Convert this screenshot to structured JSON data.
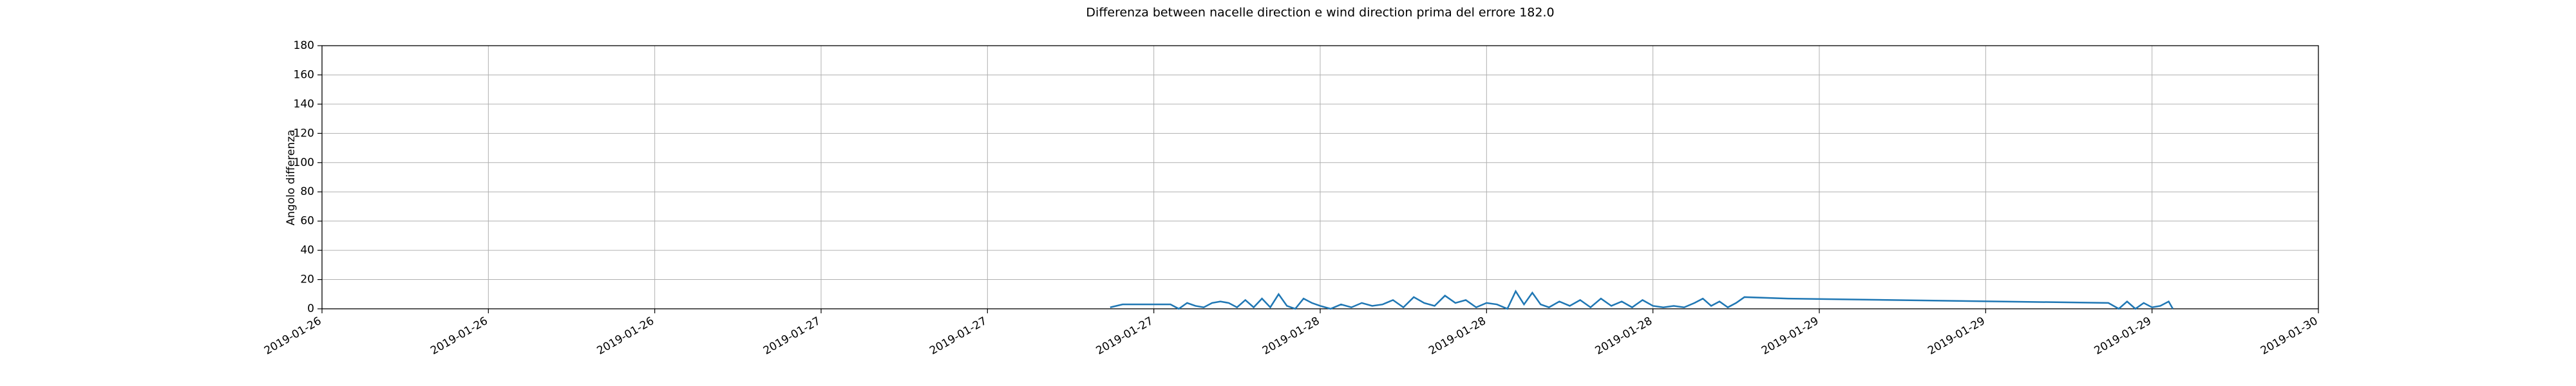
{
  "chart_data": {
    "type": "line",
    "title": "Differenza between nacelle direction e wind direction prima del errore 182.0",
    "y_label": "Angolo differenza",
    "x": [
      "2019-01-27T13:54",
      "2019-01-27T14:30",
      "2019-01-27T16:48",
      "2019-01-27T17:12",
      "2019-01-27T17:36",
      "2019-01-27T18:00",
      "2019-01-27T18:24",
      "2019-01-27T18:48",
      "2019-01-27T19:12",
      "2019-01-27T19:36",
      "2019-01-27T20:00",
      "2019-01-27T20:24",
      "2019-01-27T20:48",
      "2019-01-27T21:12",
      "2019-01-27T21:36",
      "2019-01-27T22:00",
      "2019-01-27T22:24",
      "2019-01-27T22:48",
      "2019-01-27T23:12",
      "2019-01-27T23:36",
      "2019-01-28T00:00",
      "2019-01-28T00:30",
      "2019-01-28T01:00",
      "2019-01-28T01:30",
      "2019-01-28T02:00",
      "2019-01-28T02:30",
      "2019-01-28T03:00",
      "2019-01-28T03:30",
      "2019-01-28T04:00",
      "2019-01-28T04:30",
      "2019-01-28T05:00",
      "2019-01-28T05:30",
      "2019-01-28T06:00",
      "2019-01-28T06:30",
      "2019-01-28T07:00",
      "2019-01-28T07:30",
      "2019-01-28T08:00",
      "2019-01-28T08:30",
      "2019-01-28T09:00",
      "2019-01-28T09:24",
      "2019-01-28T09:48",
      "2019-01-28T10:12",
      "2019-01-28T10:36",
      "2019-01-28T11:00",
      "2019-01-28T11:30",
      "2019-01-28T12:00",
      "2019-01-28T12:30",
      "2019-01-28T13:00",
      "2019-01-28T13:30",
      "2019-01-28T14:00",
      "2019-01-28T14:30",
      "2019-01-28T15:00",
      "2019-01-28T15:30",
      "2019-01-28T16:00",
      "2019-01-28T16:30",
      "2019-01-28T17:00",
      "2019-01-28T17:30",
      "2019-01-28T18:00",
      "2019-01-28T18:24",
      "2019-01-28T18:48",
      "2019-01-28T19:12",
      "2019-01-28T19:36",
      "2019-01-28T20:00",
      "2019-01-28T20:24",
      "2019-01-28T22:30",
      "2019-01-29T13:54",
      "2019-01-29T14:24",
      "2019-01-29T14:48",
      "2019-01-29T15:12",
      "2019-01-29T15:36",
      "2019-01-29T16:00",
      "2019-01-29T16:24",
      "2019-01-29T16:48",
      "2019-01-29T17:00"
    ],
    "values": [
      1,
      3,
      3,
      0,
      4,
      2,
      1,
      4,
      5,
      4,
      1,
      6,
      1,
      7,
      1,
      10,
      2,
      0,
      7,
      4,
      2,
      0,
      3,
      1,
      4,
      2,
      3,
      6,
      1,
      8,
      4,
      2,
      9,
      4,
      6,
      1,
      4,
      3,
      0,
      12,
      3,
      11,
      3,
      1,
      5,
      2,
      6,
      1,
      7,
      2,
      5,
      1,
      6,
      2,
      1,
      2,
      1,
      4,
      7,
      2,
      5,
      1,
      4,
      8,
      7,
      4,
      0,
      5,
      0,
      4,
      1,
      2,
      5,
      0
    ],
    "color": "#1f77b4",
    "xlim": [
      "2019-01-26T00:00",
      "2019-01-30T00:00"
    ],
    "xticks": [
      {
        "value": "2019-01-26T00:00",
        "label": "2019-01-26"
      },
      {
        "value": "2019-01-26T08:00",
        "label": "2019-01-26"
      },
      {
        "value": "2019-01-26T16:00",
        "label": "2019-01-26"
      },
      {
        "value": "2019-01-27T00:00",
        "label": "2019-01-27"
      },
      {
        "value": "2019-01-27T08:00",
        "label": "2019-01-27"
      },
      {
        "value": "2019-01-27T16:00",
        "label": "2019-01-27"
      },
      {
        "value": "2019-01-28T00:00",
        "label": "2019-01-28"
      },
      {
        "value": "2019-01-28T08:00",
        "label": "2019-01-28"
      },
      {
        "value": "2019-01-28T16:00",
        "label": "2019-01-28"
      },
      {
        "value": "2019-01-29T00:00",
        "label": "2019-01-29"
      },
      {
        "value": "2019-01-29T08:00",
        "label": "2019-01-29"
      },
      {
        "value": "2019-01-29T16:00",
        "label": "2019-01-29"
      },
      {
        "value": "2019-01-30T00:00",
        "label": "2019-01-30"
      }
    ],
    "ylim": [
      0,
      180
    ],
    "yticks": [
      0,
      20,
      40,
      60,
      80,
      100,
      120,
      140,
      160,
      180
    ],
    "grid": true
  }
}
